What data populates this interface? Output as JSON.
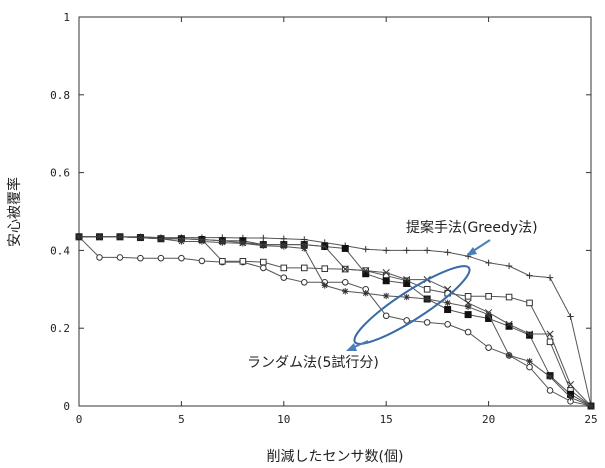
{
  "chart_data": {
    "type": "line",
    "title": "",
    "xlabel": "削減したセンサ数(個)",
    "ylabel": "安心被覆率",
    "xlim": [
      0,
      25
    ],
    "ylim": [
      0,
      1
    ],
    "xticks": [
      "0",
      "5",
      "10",
      "15",
      "20",
      "25"
    ],
    "yticks": [
      "0",
      "0.2",
      "0.4",
      "0.6",
      "0.8",
      "1"
    ],
    "grid": false,
    "annotations": [
      {
        "text": "提案手法(Greedy法)"
      },
      {
        "text": "ランダム法(5試行分)"
      }
    ],
    "series": [
      {
        "marker": "plus",
        "x": [
          0,
          1,
          2,
          3,
          4,
          5,
          6,
          7,
          8,
          9,
          10,
          11,
          12,
          13,
          14,
          15,
          16,
          17,
          18,
          19,
          20,
          21,
          22,
          23,
          24,
          25
        ],
        "y": [
          0.435,
          0.435,
          0.435,
          0.435,
          0.433,
          0.433,
          0.433,
          0.433,
          0.432,
          0.432,
          0.43,
          0.428,
          0.42,
          0.412,
          0.403,
          0.4,
          0.4,
          0.4,
          0.395,
          0.385,
          0.368,
          0.36,
          0.335,
          0.33,
          0.23,
          0
        ]
      },
      {
        "marker": "circle",
        "x": [
          0,
          1,
          2,
          3,
          4,
          5,
          6,
          7,
          8,
          9,
          10,
          11,
          12,
          13,
          14,
          15,
          16,
          17,
          18,
          19,
          20,
          21,
          22,
          23,
          24,
          25
        ],
        "y": [
          0.435,
          0.382,
          0.382,
          0.38,
          0.38,
          0.38,
          0.373,
          0.37,
          0.37,
          0.355,
          0.33,
          0.318,
          0.318,
          0.318,
          0.3,
          0.232,
          0.22,
          0.215,
          0.21,
          0.19,
          0.15,
          0.13,
          0.1,
          0.04,
          0.012,
          0
        ]
      },
      {
        "marker": "square",
        "x": [
          0,
          1,
          2,
          3,
          4,
          5,
          6,
          7,
          8,
          9,
          10,
          11,
          12,
          13,
          14,
          15,
          16,
          17,
          18,
          19,
          20,
          21,
          22,
          23,
          24,
          25
        ],
        "y": [
          0.435,
          0.435,
          0.435,
          0.433,
          0.43,
          0.43,
          0.428,
          0.372,
          0.372,
          0.37,
          0.355,
          0.355,
          0.353,
          0.352,
          0.348,
          0.335,
          0.322,
          0.3,
          0.29,
          0.282,
          0.282,
          0.28,
          0.265,
          0.165,
          0.04,
          0
        ]
      },
      {
        "marker": "filled-square",
        "x": [
          0,
          1,
          2,
          3,
          4,
          5,
          6,
          7,
          8,
          9,
          10,
          11,
          12,
          13,
          14,
          15,
          16,
          17,
          18,
          19,
          20,
          21,
          22,
          23,
          24,
          25
        ],
        "y": [
          0.435,
          0.435,
          0.435,
          0.433,
          0.43,
          0.43,
          0.428,
          0.425,
          0.425,
          0.415,
          0.415,
          0.415,
          0.41,
          0.405,
          0.34,
          0.322,
          0.315,
          0.275,
          0.248,
          0.235,
          0.225,
          0.205,
          0.182,
          0.078,
          0.03,
          0
        ]
      },
      {
        "marker": "x",
        "x": [
          0,
          1,
          2,
          3,
          4,
          5,
          6,
          7,
          8,
          9,
          10,
          11,
          12,
          13,
          14,
          15,
          16,
          17,
          18,
          19,
          20,
          21,
          22,
          23,
          24,
          25
        ],
        "y": [
          0.435,
          0.435,
          0.435,
          0.433,
          0.43,
          0.43,
          0.428,
          0.425,
          0.42,
          0.415,
          0.415,
          0.415,
          0.41,
          0.352,
          0.348,
          0.343,
          0.325,
          0.325,
          0.3,
          0.265,
          0.24,
          0.21,
          0.185,
          0.185,
          0.055,
          0
        ]
      },
      {
        "marker": "star",
        "x": [
          0,
          1,
          2,
          3,
          4,
          5,
          6,
          7,
          8,
          9,
          10,
          11,
          12,
          13,
          14,
          15,
          16,
          17,
          18,
          19,
          20,
          21,
          22,
          23,
          24,
          25
        ],
        "y": [
          0.435,
          0.435,
          0.435,
          0.433,
          0.43,
          0.423,
          0.423,
          0.42,
          0.418,
          0.412,
          0.41,
          0.405,
          0.31,
          0.295,
          0.29,
          0.283,
          0.28,
          0.275,
          0.265,
          0.255,
          0.235,
          0.13,
          0.115,
          0.075,
          0.022,
          0
        ]
      }
    ]
  }
}
